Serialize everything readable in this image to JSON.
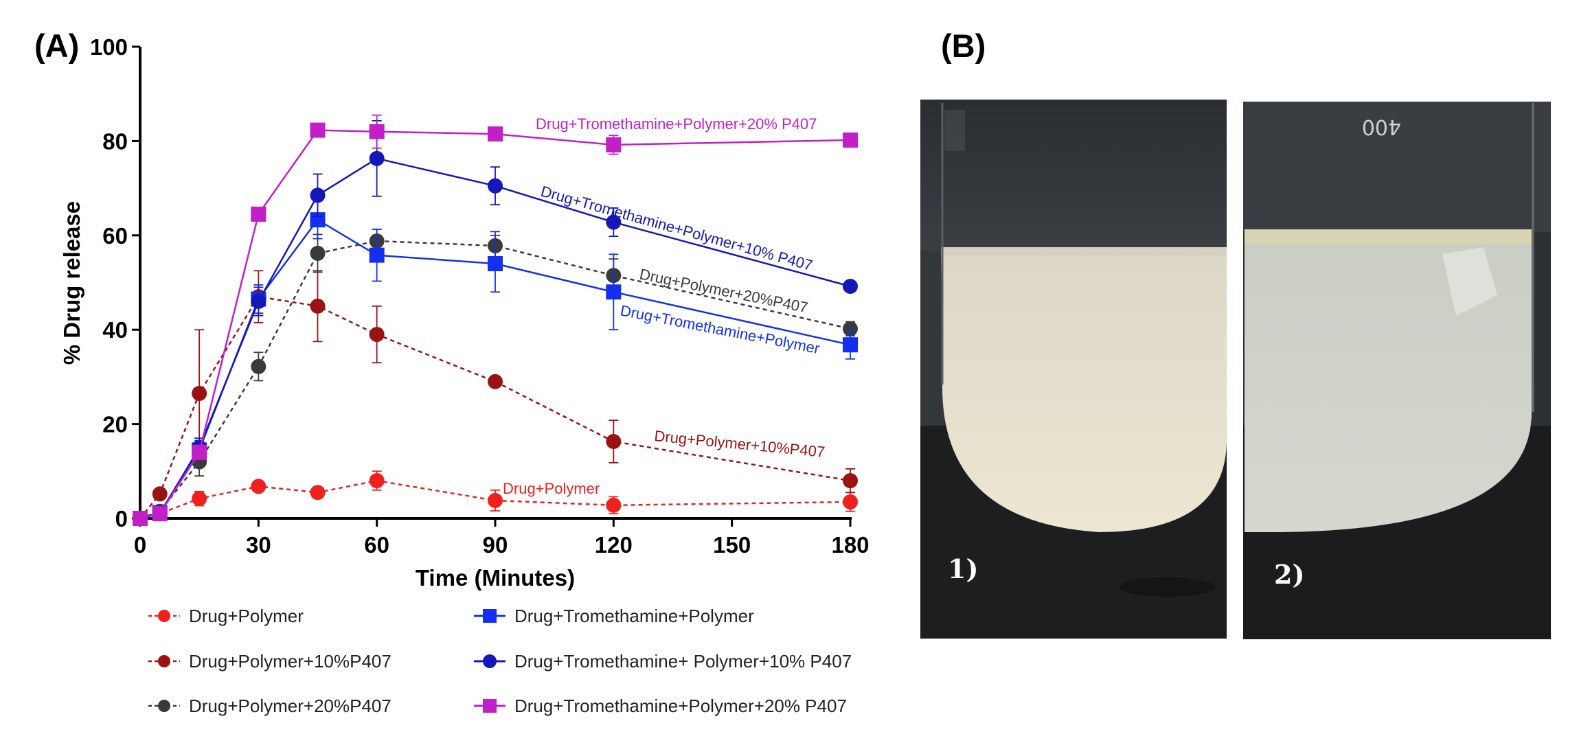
{
  "panels": {
    "a_label": "(A)",
    "b_label": "(B)"
  },
  "chart_data": {
    "type": "line",
    "title": "",
    "xlabel": "Time (Minutes)",
    "ylabel": "% Drug release",
    "xlim": [
      0,
      180
    ],
    "ylim": [
      0,
      100
    ],
    "xticks": [
      0,
      30,
      60,
      90,
      120,
      150,
      180
    ],
    "yticks": [
      0,
      20,
      40,
      60,
      80,
      100
    ],
    "grid": false,
    "legend_position": "bottom",
    "series": [
      {
        "name": "Drug+Polymer",
        "label": "Drug+Polymer",
        "color": "#f0201e",
        "marker": "circle",
        "dashed": true,
        "x": [
          0,
          5,
          15,
          30,
          45,
          60,
          90,
          120,
          180
        ],
        "y": [
          0,
          1.0,
          4.2,
          6.8,
          5.5,
          8.0,
          3.8,
          2.8,
          3.5
        ],
        "err": [
          0,
          0.4,
          1.5,
          1.0,
          0.8,
          2.0,
          2.2,
          1.8,
          2.0
        ]
      },
      {
        "name": "Drug+Polymer+10%P407",
        "label": "Drug+Polymer+10%P407",
        "color": "#9b1212",
        "marker": "circle",
        "dashed": true,
        "x": [
          0,
          5,
          15,
          30,
          45,
          60,
          90,
          120,
          180
        ],
        "y": [
          0,
          5.2,
          26.5,
          47.0,
          45.0,
          39.0,
          29.0,
          16.3,
          8.0
        ],
        "err": [
          0,
          0.5,
          13.5,
          5.5,
          7.5,
          6.0,
          1.0,
          4.5,
          2.5
        ]
      },
      {
        "name": "Drug+Polymer+20%P407",
        "label": "Drug+Polymer+20%P407",
        "color": "#3a3a3a",
        "marker": "circle",
        "dashed": true,
        "x": [
          0,
          5,
          15,
          30,
          45,
          60,
          90,
          120,
          180
        ],
        "y": [
          0,
          1.5,
          12.0,
          32.2,
          56.2,
          58.8,
          57.8,
          51.5,
          40.2
        ],
        "err": [
          0,
          0.5,
          3.0,
          3.0,
          4.0,
          2.5,
          3.0,
          3.5,
          1.5
        ]
      },
      {
        "name": "Drug+Tromethamine+Polymer",
        "label": "Drug+Tromethamine+Polymer",
        "color": "#1330f0",
        "marker": "square",
        "dashed": false,
        "x": [
          0,
          5,
          15,
          30,
          45,
          60,
          90,
          120,
          180
        ],
        "y": [
          0,
          1.2,
          14.5,
          46.5,
          63.3,
          55.8,
          54.0,
          48.0,
          36.8
        ],
        "err": [
          0,
          0.5,
          2.0,
          3.0,
          4.0,
          5.5,
          6.0,
          8.0,
          3.0
        ]
      },
      {
        "name": "Drug+Tromethamine+ Polymer+10% P407",
        "label": "Drug+Tromethamine+Polymer+10% P407",
        "color": "#1418b8",
        "marker": "circle",
        "dashed": false,
        "x": [
          0,
          5,
          15,
          30,
          45,
          60,
          90,
          120,
          180
        ],
        "y": [
          0,
          1.0,
          15.0,
          46.0,
          68.5,
          76.3,
          70.5,
          62.8,
          49.2
        ],
        "err": [
          0,
          0.5,
          2.0,
          3.0,
          4.5,
          8.0,
          4.0,
          3.0,
          1.0
        ]
      },
      {
        "name": "Drug+Tromethamine+Polymer+20% P407",
        "label": "Drug+Tromethamine+Polymer+20% P407",
        "color": "#c21fc9",
        "marker": "square",
        "dashed": false,
        "x": [
          0,
          5,
          15,
          30,
          45,
          60,
          90,
          120,
          180
        ],
        "y": [
          0,
          1.0,
          14.0,
          64.5,
          82.3,
          82.0,
          81.5,
          79.2,
          80.2
        ],
        "err": [
          0,
          0.3,
          1.5,
          1.0,
          1.0,
          3.5,
          1.0,
          2.0,
          1.0
        ]
      }
    ]
  },
  "photos": [
    {
      "label": "1)"
    },
    {
      "label": "2)"
    }
  ]
}
